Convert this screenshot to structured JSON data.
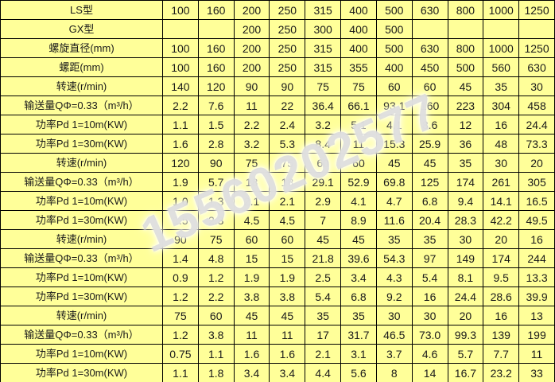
{
  "table": {
    "columns": [
      "100",
      "160",
      "200",
      "250",
      "315",
      "400",
      "500",
      "630",
      "800",
      "1000",
      "1250"
    ],
    "rows": [
      {
        "label": "LS型",
        "values": [
          "100",
          "160",
          "200",
          "250",
          "315",
          "400",
          "500",
          "630",
          "800",
          "1000",
          "1250"
        ]
      },
      {
        "label": "GX型",
        "values": [
          "",
          "",
          "200",
          "250",
          "300",
          "400",
          "500",
          "",
          "",
          "",
          ""
        ]
      },
      {
        "label": "螺旋直径(mm)",
        "values": [
          "100",
          "160",
          "200",
          "250",
          "315",
          "400",
          "500",
          "630",
          "800",
          "1000",
          "1250"
        ]
      },
      {
        "label": "螺距(mm)",
        "values": [
          "100",
          "160",
          "200",
          "250",
          "315",
          "355",
          "400",
          "450",
          "500",
          "560",
          "630"
        ]
      },
      {
        "label": "转速(r/min)",
        "values": [
          "140",
          "120",
          "90",
          "90",
          "75",
          "75",
          "60",
          "60",
          "45",
          "35",
          "30"
        ]
      },
      {
        "label": "输送量QΦ=0.33（m³/h）",
        "values": [
          "2.2",
          "7.6",
          "11",
          "22",
          "36.4",
          "66.1",
          "93.1",
          "160",
          "223",
          "304",
          "458"
        ]
      },
      {
        "label": "功率Pd 1=10m(KW)",
        "values": [
          "1.1",
          "1.5",
          "2.2",
          "2.4",
          "3.2",
          "5.1",
          "4.1",
          "8.6",
          "12",
          "16",
          "24.4"
        ]
      },
      {
        "label": "功率Pd 1=30m(KW)",
        "values": [
          "1.6",
          "2.8",
          "3.2",
          "5.3",
          "8.4",
          "11",
          "15.3",
          "25.9",
          "36",
          "48",
          "73.3"
        ]
      },
      {
        "label": "转速(r/min)",
        "values": [
          "120",
          "90",
          "75",
          "75",
          "60",
          "60",
          "45",
          "45",
          "35",
          "30",
          "20"
        ]
      },
      {
        "label": "输送量QΦ=0.33（m³/h）",
        "values": [
          "1.9",
          "5.7",
          "18",
          "18",
          "29.1",
          "52.9",
          "69.8",
          "125",
          "174",
          "261",
          "305"
        ]
      },
      {
        "label": "功率Pd 1=10m(KW)",
        "values": [
          "1.0",
          "1.3",
          "2.1",
          "2.1",
          "2.9",
          "4.1",
          "4.7",
          "6.8",
          "9.4",
          "14.1",
          "16.5"
        ]
      },
      {
        "label": "功率Pd 1=30m(KW)",
        "values": [
          "1.5",
          "2.3",
          "4.5",
          "4.5",
          "7",
          "8.9",
          "11.6",
          "20.4",
          "28.3",
          "42.2",
          "49.5"
        ]
      },
      {
        "label": "转速(r/min)",
        "values": [
          "90",
          "75",
          "60",
          "60",
          "45",
          "45",
          "35",
          "35",
          "30",
          "20",
          "16"
        ]
      },
      {
        "label": "输送量QΦ=0.33（m³/h）",
        "values": [
          "1.4",
          "4.8",
          "15",
          "15",
          "21.8",
          "39.6",
          "54.3",
          "97",
          "149",
          "174",
          "244"
        ]
      },
      {
        "label": "功率Pd 1=10m(KW)",
        "values": [
          "0.9",
          "1.2",
          "1.9",
          "1.9",
          "2.5",
          "3.4",
          "4.3",
          "5.4",
          "8.1",
          "9.5",
          "13.3"
        ]
      },
      {
        "label": "功率Pd 1=30m(KW)",
        "values": [
          "1.2",
          "2.2",
          "3.8",
          "3.8",
          "5.4",
          "6.8",
          "9.2",
          "16",
          "24.4",
          "28.6",
          "39.9"
        ]
      },
      {
        "label": "转速(r/min)",
        "values": [
          "75",
          "60",
          "45",
          "45",
          "35",
          "35",
          "30",
          "30",
          "20",
          "16",
          "13"
        ]
      },
      {
        "label": "输送量QΦ=0.33（m³/h）",
        "values": [
          "1.2",
          "3.8",
          "11",
          "11",
          "17",
          "31.7",
          "46.5",
          "73.0",
          "99.3",
          "139",
          "199"
        ]
      },
      {
        "label": "功率Pd 1=10m(KW)",
        "values": [
          "0.75",
          "1.1",
          "1.6",
          "1.6",
          "2.1",
          "3.1",
          "3.7",
          "4.6",
          "5.7",
          "7.7",
          "11"
        ]
      },
      {
        "label": "功率Pd 1=30m(KW)",
        "values": [
          "1.1",
          "1.8",
          "3.4",
          "3.4",
          "4.4",
          "5.6",
          "8",
          "14",
          "16.7",
          "23.2",
          "33"
        ]
      }
    ]
  },
  "watermark": {
    "text": "15560202577"
  },
  "colors": {
    "cell_bg": "#FFFF99",
    "grid": "#000000",
    "text": "#1A1A1A",
    "watermark": "#CDCDCD"
  }
}
